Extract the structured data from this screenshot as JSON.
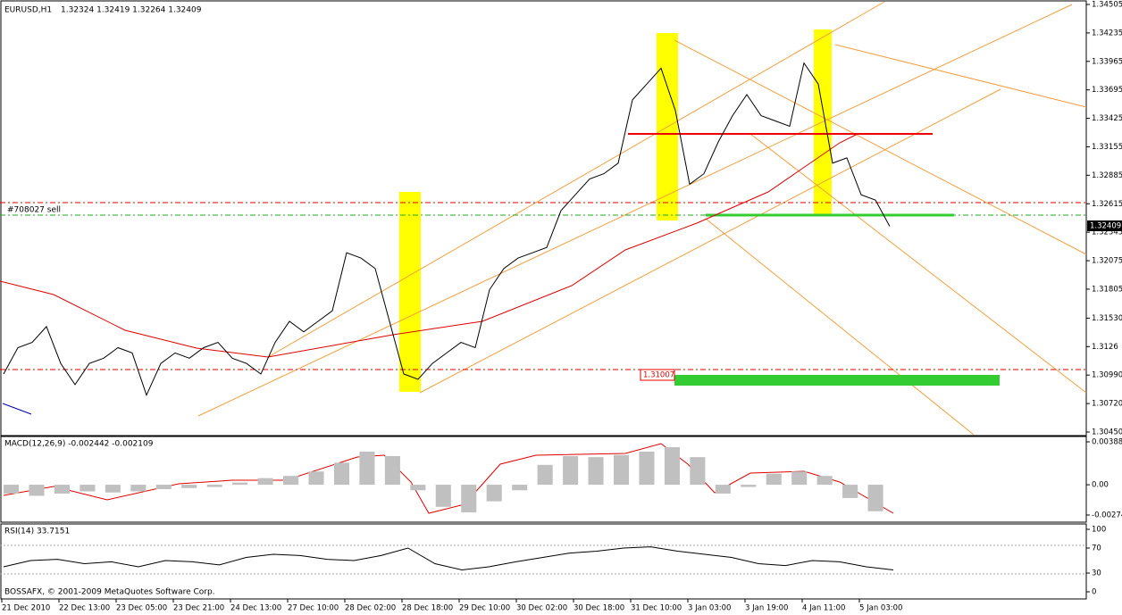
{
  "header": {
    "symbol": "EURUSD,H1",
    "quote": "1.32324 1.32419 1.32264 1.32409"
  },
  "order_label": "#708027 sell",
  "level_label": "1.31007",
  "current_price_label": "1.32409",
  "price_axis": {
    "ticks": [
      1.34505,
      1.34235,
      1.33965,
      1.33695,
      1.33425,
      1.33155,
      1.32885,
      1.32615,
      1.32345,
      1.32075,
      1.31805,
      {
        "value": 1.3153,
        "label": "1.31530"
      },
      1.3126,
      {
        "value": 1.3099,
        "label": "1.30990"
      },
      {
        "value": 1.3072,
        "label": "1.30720"
      },
      {
        "value": 1.3045,
        "label": "1.30450"
      }
    ]
  },
  "closes": [
    1.31,
    1.3125,
    1.313,
    1.3145,
    1.311,
    1.309,
    1.311,
    1.3115,
    1.3125,
    1.312,
    1.308,
    1.311,
    1.312,
    1.3115,
    1.3125,
    1.313,
    1.3115,
    1.311,
    1.31,
    1.313,
    1.315,
    1.314,
    1.315,
    1.316,
    1.3215,
    1.321,
    1.32,
    1.315,
    1.31,
    1.3095,
    1.311,
    1.312,
    1.313,
    1.3125,
    1.318,
    1.32,
    1.321,
    1.3215,
    1.322,
    1.3255,
    1.327,
    1.3285,
    1.329,
    1.33,
    1.336,
    1.3375,
    1.339,
    1.335,
    1.328,
    1.329,
    1.332,
    1.3345,
    1.3365,
    1.3345,
    1.334,
    1.3335,
    1.3395,
    1.3375,
    1.33,
    1.3305,
    1.327,
    1.3265,
    1.324
  ],
  "macd": {
    "label": "MACD(12,26,9) -0.002442 -0.002109",
    "ticks": [
      0.003886,
      {
        "value": 0,
        "label": "0.00"
      },
      -0.002742
    ],
    "histogram": [
      -0.0008,
      -0.001,
      -0.0008,
      -0.0006,
      -0.0007,
      -0.0006,
      -0.0004,
      -0.0003,
      -0.0002,
      0.0002,
      0.0006,
      0.0008,
      0.0012,
      0.002,
      0.003,
      0.0026,
      -0.0005,
      -0.002,
      -0.0025,
      -0.0015,
      -0.0005,
      0.0018,
      0.0026,
      0.0025,
      0.0027,
      0.003,
      0.0034,
      0.0025,
      -0.0008,
      -0.0002,
      0.001,
      0.0012,
      0.0008,
      -0.0012,
      -0.0024
    ]
  },
  "rsi": {
    "label": "RSI(14) 33.7151",
    "ticks": [
      100,
      70,
      30,
      0
    ],
    "values": [
      40,
      50,
      52,
      45,
      48,
      40,
      50,
      48,
      43,
      55,
      60,
      58,
      52,
      50,
      58,
      70,
      45,
      35,
      40,
      48,
      55,
      62,
      65,
      70,
      72,
      65,
      60,
      55,
      45,
      42,
      50,
      48,
      40,
      35
    ]
  },
  "copyright": "BOSSAFX, © 2001-2009 MetaQuotes Software Corp.",
  "time_axis": [
    "21 Dec 2010",
    "22 Dec 13:00",
    "23 Dec 05:00",
    "23 Dec 21:00",
    "24 Dec 13:00",
    "27 Dec 10:00",
    "28 Dec 02:00",
    "28 Dec 18:00",
    "29 Dec 10:00",
    "30 Dec 02:00",
    "30 Dec 18:00",
    "31 Dec 10:00",
    "3 Jan 03:00",
    "3 Jan 19:00",
    "4 Jan 11:00",
    "5 Jan 03:00"
  ]
}
